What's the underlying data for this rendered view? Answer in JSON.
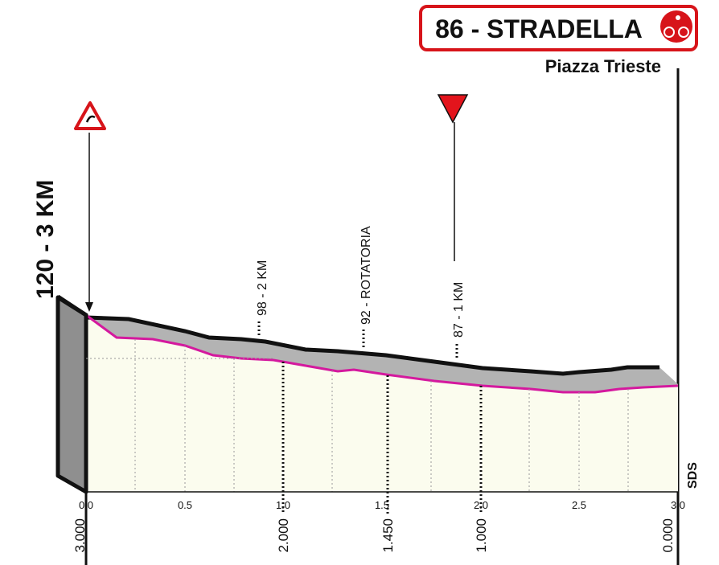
{
  "header": {
    "title": "86 - STRADELLA",
    "subtitle": "Piazza Trieste"
  },
  "profile": {
    "start_label": "120 - 3 KM",
    "waypoints": [
      "98 - 2 KM",
      "92 - ROTATORIA",
      "87 - 1 KM"
    ],
    "km_ticks": [
      "0.0",
      "0.5",
      "1.0",
      "1.5",
      "2.0",
      "2.5",
      "3.0"
    ],
    "distance_labels": [
      "3.000",
      "2.000",
      "1.450",
      "1.000",
      "0.000"
    ]
  },
  "footer": {
    "logo": "SDS"
  }
}
